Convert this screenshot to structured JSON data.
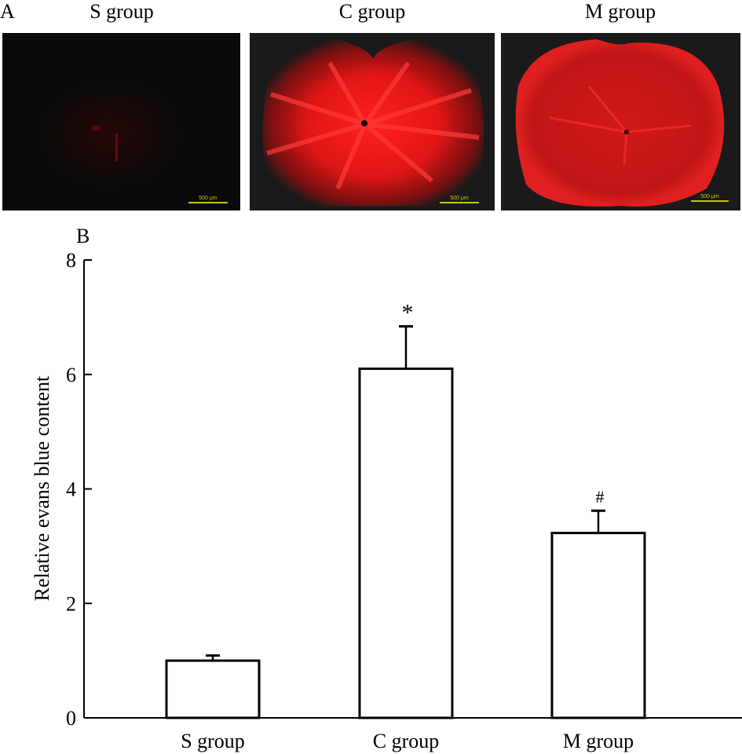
{
  "panel_a": {
    "label": "A",
    "images": [
      {
        "title": "S group",
        "scale_bar": "500 μm",
        "intensity": 0.05
      },
      {
        "title": "C group",
        "scale_bar": "500 μm",
        "intensity": 1.0
      },
      {
        "title": "M group",
        "scale_bar": "500 μm",
        "intensity": 0.75
      }
    ],
    "colors": {
      "stain": "#ff1a1a",
      "background": "#0a0a0a",
      "scale_bar": "#c8c800"
    }
  },
  "chart_data": {
    "type": "bar",
    "panel_label": "B",
    "categories": [
      "S group",
      "C group",
      "M group"
    ],
    "values": [
      1.0,
      6.1,
      3.23
    ],
    "error_upper": [
      1.09,
      6.84,
      3.62
    ],
    "annotations": [
      "",
      "*",
      "#"
    ],
    "xlabel": "",
    "ylabel": "Relative evans blue content",
    "ylim": [
      0,
      8
    ],
    "yticks": [
      "0",
      "2",
      "4",
      "6",
      "8"
    ],
    "grid": false,
    "bar_fill": "#ffffff",
    "bar_edge": "#000000"
  }
}
